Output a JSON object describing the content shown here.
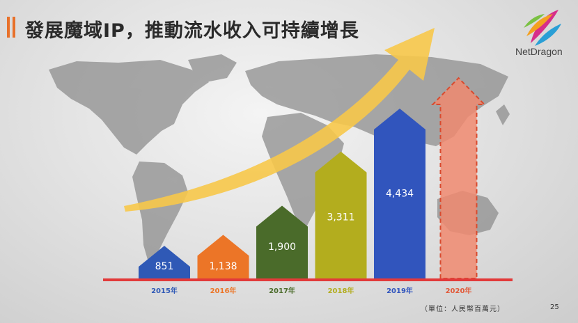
{
  "title": "發展魔域IP，推動流水收入可持續增長",
  "brand": "NetDragon",
  "unit_note": "（單位：人民幣百萬元）",
  "page_number": "25",
  "colors": {
    "accent": "#e8712a",
    "baseline": "#e23a3a",
    "growth_arrow": "#f7c84a",
    "map": "#8e8e8e"
  },
  "chart_data": {
    "type": "bar",
    "categories": [
      "2015年",
      "2016年",
      "2017年",
      "2018年",
      "2019年",
      "2020年"
    ],
    "values": [
      851,
      1138,
      1900,
      3311,
      4434,
      null
    ],
    "value_labels": [
      "851",
      "1,138",
      "1,900",
      "3,311",
      "4,434",
      ""
    ],
    "bar_colors": [
      "#2f59b6",
      "#ec7527",
      "#4a6b2a",
      "#b3ad1e",
      "#3155bd",
      "#f08a70"
    ],
    "label_colors": [
      "#2f59b6",
      "#ec7527",
      "#4a6b2a",
      "#b3ad1e",
      "#3155bd",
      "#e25a3a"
    ],
    "forecast_index": 5,
    "bar_shape": "arrow",
    "xlabel": "",
    "ylabel": "",
    "grid": false,
    "legend": "none"
  }
}
